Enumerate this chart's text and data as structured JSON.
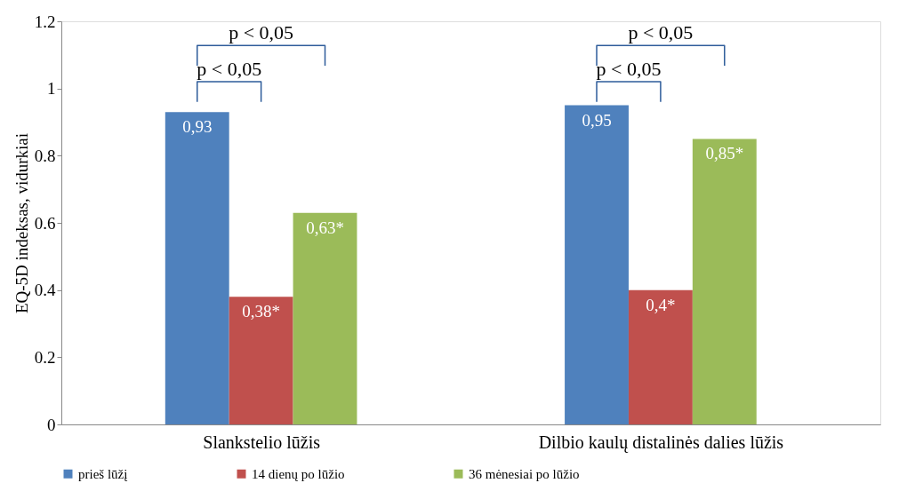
{
  "chart_data": {
    "type": "bar",
    "ylabel": "EQ-5D indeksas, vidurkiai",
    "categories": [
      "Slankstelio lūžis",
      "Dilbio kaulų distalinės dalies lūžis"
    ],
    "series": [
      {
        "name": "prieš lūžį",
        "color": "#4f81bd",
        "values": [
          0.93,
          0.95
        ],
        "value_labels": [
          "0,93",
          "0,95"
        ]
      },
      {
        "name": "14 dienų po lūžio",
        "color": "#c0504d",
        "values": [
          0.38,
          0.4
        ],
        "value_labels": [
          "0,38*",
          "0,4*"
        ]
      },
      {
        "name": "36 mėnesiai po lūžio",
        "color": "#9bbb59",
        "values": [
          0.63,
          0.85
        ],
        "value_labels": [
          "0,63*",
          "0,85*"
        ]
      }
    ],
    "ylim": [
      0,
      1.2
    ],
    "yticks": [
      0,
      0.2,
      0.4,
      0.6,
      0.8,
      1,
      1.2
    ],
    "annotations": [
      "p < 0,05",
      "p < 0,05",
      "p < 0,05",
      "p < 0,05"
    ],
    "grid": false,
    "legend": "bottom"
  }
}
